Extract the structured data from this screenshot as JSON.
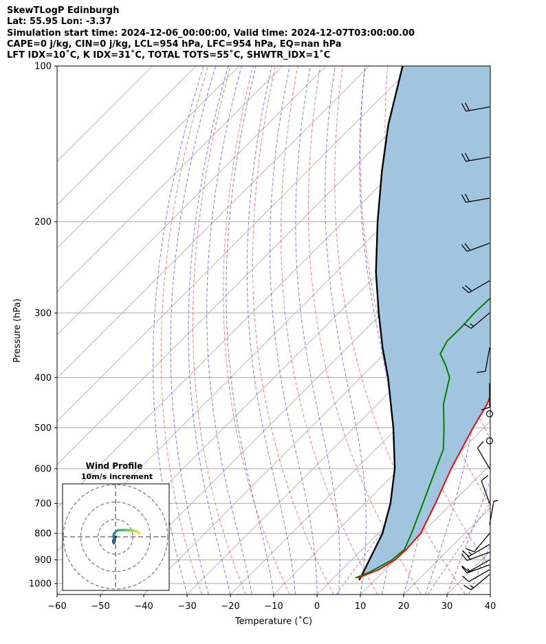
{
  "header": {
    "line1": "SkewTLogP Edinburgh",
    "line2": "Lat: 55.95   Lon: -3.37",
    "line3": "Simulation start time: 2024-12-06_00:00:00, Valid time: 2024-12-07T03:00:00.00",
    "line4": "CAPE=0 j/kg, CIN=0 j/kg, LCL=954 hPa, LFC=954 hPa, EQ=nan hPa",
    "line5": "LFT IDX=10˚C, K IDX=31˚C, TOTAL TOTS=55˚C, SHWTR_IDX=1˚C"
  },
  "chart_data": [
    {
      "type": "line",
      "xlabel": "Temperature (˚C)",
      "ylabel": "Pressure (hPa)",
      "xlim": [
        -60,
        40
      ],
      "ylim": [
        1050,
        100
      ],
      "y_scale": "log",
      "grid": true,
      "xticks": [
        -60,
        -50,
        -40,
        -30,
        -20,
        -10,
        0,
        10,
        20,
        30,
        40
      ],
      "yticks": [
        100,
        200,
        300,
        400,
        500,
        600,
        700,
        800,
        900,
        1000
      ],
      "colors": {
        "temperature": "#ff0000",
        "dewpoint": "#008000",
        "parcel": "#000000",
        "cape_fill": "#a2c5df",
        "dry_adiabat": "#ff4d4d",
        "moist_adiabat": "#4d4dff",
        "mixing_ratio": "#9955cc",
        "isotherm": "#aaaaaa"
      },
      "series": [
        {
          "key": "temperature",
          "p": [
            975,
            940,
            900,
            860,
            800,
            700,
            600,
            500,
            450,
            400,
            350,
            320,
            300,
            290,
            275,
            260,
            240,
            220,
            200,
            180,
            160,
            140,
            120,
            110,
            100
          ],
          "values": [
            5.6,
            8.5,
            10,
            10.2,
            9.8,
            6.3,
            1.9,
            -2.5,
            -4.7,
            -8.4,
            -10.1,
            -10.2,
            -9.5,
            -8.9,
            -7.4,
            -5.5,
            -3.3,
            -1.4,
            0.2,
            3.3,
            6.1,
            8.7,
            10.8,
            11.8,
            12.7
          ]
        },
        {
          "key": "dewpoint",
          "p": [
            975,
            950,
            900,
            860,
            800,
            700,
            600,
            550,
            500,
            450,
            430,
            400,
            380,
            360,
            340,
            320,
            300,
            270,
            250,
            230,
            200,
            175,
            150,
            120,
            100
          ],
          "values": [
            5,
            7,
            9.3,
            9.8,
            7.7,
            3.4,
            -1.6,
            -4.4,
            -9.2,
            -14.8,
            -16.6,
            -19.5,
            -23,
            -27.1,
            -28.5,
            -28.4,
            -28.7,
            -28.3,
            -28.5,
            -28.4,
            -26.5,
            -24.5,
            -20.4,
            -14.6,
            -10.2
          ]
        },
        {
          "key": "parcel",
          "p": [
            985,
            960,
            900,
            800,
            700,
            600,
            500,
            400,
            350,
            300,
            250,
            200,
            160,
            130,
            100
          ],
          "values": [
            6.4,
            5.8,
            4.1,
            1,
            -4.1,
            -11.1,
            -20.9,
            -33.7,
            -41.9,
            -50.8,
            -60.9,
            -72.1,
            -82.7,
            -92,
            -102.3
          ]
        }
      ]
    },
    {
      "type": "line",
      "title": "Wind Profile",
      "subtitle": "10m/s increment",
      "ring_count": 3,
      "hodograph": {
        "u": [
          0,
          -0.6,
          -1.3,
          -1.2,
          -1.0,
          -0.8,
          -0.5,
          -0.7,
          -1.0,
          -1.2,
          -0.9,
          0.1,
          1.5,
          3.5,
          5.5,
          7.5,
          9.5,
          11,
          12.5,
          13.3,
          13.8
        ],
        "v": [
          0,
          -1.4,
          -2.2,
          -3.1,
          -3.7,
          -3.4,
          -2.5,
          -1.5,
          -0.5,
          0.5,
          1.7,
          3.0,
          3.7,
          3.9,
          3.9,
          3.8,
          3.6,
          3.4,
          3.0,
          2.6,
          1.9
        ]
      }
    }
  ],
  "wind_barbs": {
    "p": [
      120,
      150,
      180,
      220,
      260,
      300,
      350,
      410,
      470,
      530,
      600,
      700,
      770,
      800,
      840,
      870,
      900,
      920,
      940,
      960
    ],
    "speed": [
      20,
      20,
      20,
      20,
      20,
      15,
      10,
      10,
      0,
      0,
      10,
      10,
      5,
      10,
      15,
      15,
      10,
      15,
      10,
      15
    ],
    "direction": [
      260,
      260,
      260,
      250,
      240,
      230,
      190,
      180,
      0,
      0,
      330,
      340,
      10,
      220,
      240,
      250,
      240,
      250,
      240,
      230
    ]
  }
}
